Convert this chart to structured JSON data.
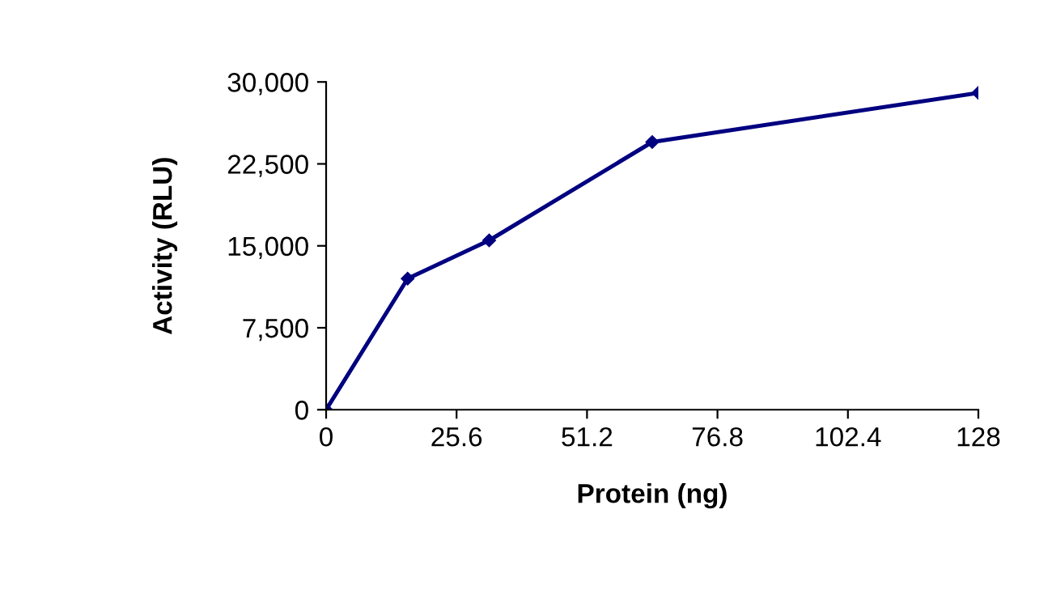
{
  "chart_data": {
    "type": "line",
    "xlabel": "Protein (ng)",
    "ylabel": "Activity (RLU)",
    "x": [
      0,
      16,
      32,
      64,
      128
    ],
    "series": [
      {
        "color": "#000080",
        "values": [
          0,
          12000,
          15500,
          24500,
          29000
        ]
      }
    ],
    "xlim": [
      0,
      128
    ],
    "xticks": [
      0,
      25.6,
      51.2,
      76.8,
      102.4,
      128
    ],
    "ylim": [
      0,
      30000
    ],
    "yticks": [
      {
        "value": 0,
        "label": "0"
      },
      {
        "value": 7500,
        "label": "7,500"
      },
      {
        "value": 15000,
        "label": "15,000"
      },
      {
        "value": 22500,
        "label": "22,500"
      },
      {
        "value": 30000,
        "label": "30,000"
      }
    ],
    "marker": "diamond",
    "line_style": "solid",
    "grid": false,
    "legend": false
  }
}
